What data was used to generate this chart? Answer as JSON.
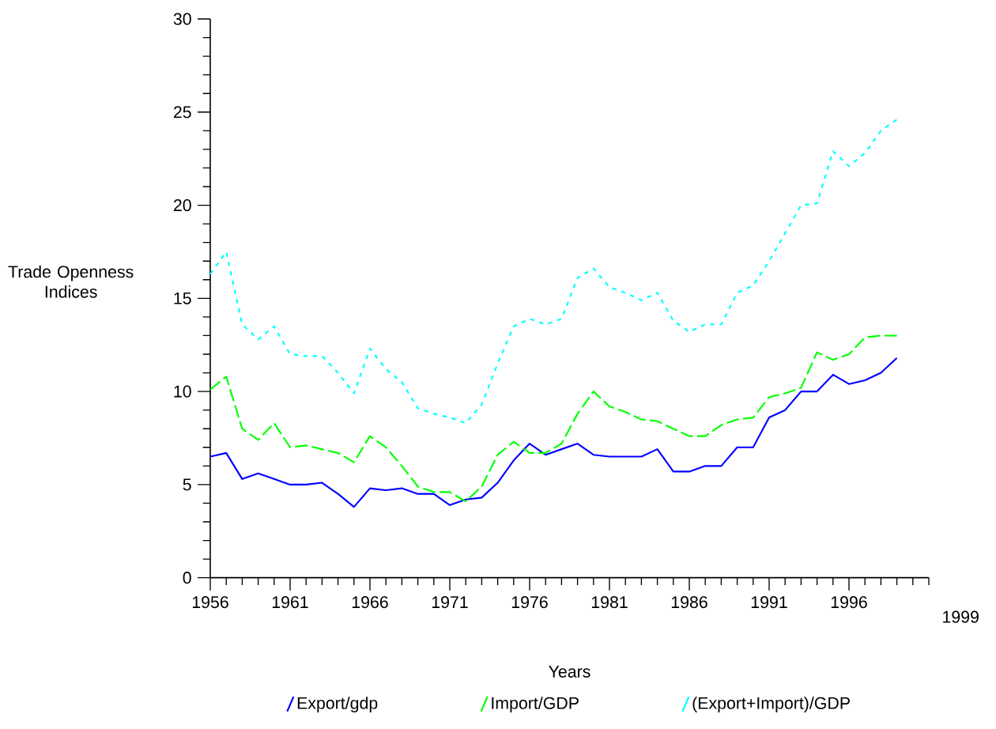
{
  "chart_data": {
    "type": "line",
    "xlabel": "Years",
    "ylabel": "Trade Openness Indices",
    "annotations": [
      "1999"
    ],
    "x": [
      1956,
      1957,
      1958,
      1959,
      1960,
      1961,
      1962,
      1963,
      1964,
      1965,
      1966,
      1967,
      1968,
      1969,
      1970,
      1971,
      1972,
      1973,
      1974,
      1975,
      1976,
      1977,
      1978,
      1979,
      1980,
      1981,
      1982,
      1983,
      1984,
      1985,
      1986,
      1987,
      1988,
      1989,
      1990,
      1991,
      1992,
      1993,
      1994,
      1995,
      1996,
      1997,
      1998,
      1999
    ],
    "series": [
      {
        "name": "Export/gdp",
        "color": "#0000ff",
        "line_style": "solid",
        "values": [
          6.5,
          6.7,
          5.3,
          5.6,
          5.3,
          5.0,
          5.0,
          5.1,
          4.5,
          3.8,
          4.8,
          4.7,
          4.8,
          4.5,
          4.5,
          3.9,
          4.2,
          4.3,
          5.1,
          6.3,
          7.2,
          6.6,
          6.9,
          7.2,
          6.6,
          6.5,
          6.5,
          6.5,
          6.9,
          5.7,
          5.7,
          6.0,
          6.0,
          7.0,
          7.0,
          8.6,
          9.0,
          10.0,
          10.0,
          10.9,
          10.4,
          10.6,
          11.0,
          11.8
        ]
      },
      {
        "name": "Import/GDP",
        "color": "#00ff00",
        "line_style": "dashed",
        "values": [
          10.1,
          10.8,
          8.0,
          7.4,
          8.3,
          7.0,
          7.1,
          6.9,
          6.7,
          6.2,
          7.6,
          7.0,
          6.0,
          4.9,
          4.6,
          4.6,
          4.1,
          4.9,
          6.6,
          7.3,
          6.7,
          6.7,
          7.2,
          8.8,
          10.0,
          9.2,
          8.9,
          8.5,
          8.4,
          8.0,
          7.6,
          7.6,
          8.2,
          8.5,
          8.6,
          9.7,
          9.9,
          10.2,
          12.1,
          11.7,
          12.0,
          12.9,
          13.0,
          13.0
        ]
      },
      {
        "name": "(Export+Import)/GDP",
        "color": "#00ffff",
        "line_style": "dotted",
        "values": [
          16.3,
          17.5,
          13.6,
          12.8,
          13.5,
          12.0,
          11.9,
          11.9,
          11.0,
          9.9,
          12.3,
          11.2,
          10.5,
          9.1,
          8.8,
          8.6,
          8.3,
          9.3,
          11.5,
          13.5,
          13.9,
          13.6,
          13.9,
          16.1,
          16.6,
          15.6,
          15.3,
          14.9,
          15.3,
          13.8,
          13.2,
          13.6,
          13.6,
          15.3,
          15.7,
          17.0,
          18.5,
          20.0,
          20.1,
          22.9,
          22.1,
          22.8,
          24.0,
          24.6
        ]
      }
    ],
    "xlim": [
      1956,
      2001
    ],
    "xticks": [
      1956,
      {
        "value": 1957,
        "label": null
      },
      {
        "value": 1958,
        "label": null
      },
      {
        "value": 1959,
        "label": null
      },
      {
        "value": 1960,
        "label": null
      },
      1961,
      {
        "value": 1962,
        "label": null
      },
      {
        "value": 1963,
        "label": null
      },
      {
        "value": 1964,
        "label": null
      },
      {
        "value": 1965,
        "label": null
      },
      1966,
      {
        "value": 1967,
        "label": null
      },
      {
        "value": 1968,
        "label": null
      },
      {
        "value": 1969,
        "label": null
      },
      {
        "value": 1970,
        "label": null
      },
      1971,
      {
        "value": 1972,
        "label": null
      },
      {
        "value": 1973,
        "label": null
      },
      {
        "value": 1974,
        "label": null
      },
      {
        "value": 1975,
        "label": null
      },
      1976,
      {
        "value": 1977,
        "label": null
      },
      {
        "value": 1978,
        "label": null
      },
      {
        "value": 1979,
        "label": null
      },
      {
        "value": 1980,
        "label": null
      },
      1981,
      {
        "value": 1982,
        "label": null
      },
      {
        "value": 1983,
        "label": null
      },
      {
        "value": 1984,
        "label": null
      },
      {
        "value": 1985,
        "label": null
      },
      1986,
      {
        "value": 1987,
        "label": null
      },
      {
        "value": 1988,
        "label": null
      },
      {
        "value": 1989,
        "label": null
      },
      {
        "value": 1990,
        "label": null
      },
      1991,
      {
        "value": 1992,
        "label": null
      },
      {
        "value": 1993,
        "label": null
      },
      {
        "value": 1994,
        "label": null
      },
      {
        "value": 1995,
        "label": null
      },
      1996,
      {
        "value": 1997,
        "label": null
      },
      {
        "value": 1998,
        "label": null
      },
      {
        "value": 1999,
        "label": null
      },
      {
        "value": 2000,
        "label": null
      },
      {
        "value": 2001,
        "label": null
      }
    ],
    "ylim": [
      0,
      30
    ],
    "yticks": [
      0,
      {
        "value": 1,
        "label": null
      },
      {
        "value": 2,
        "label": null
      },
      {
        "value": 3,
        "label": null
      },
      {
        "value": 4,
        "label": null
      },
      5,
      {
        "value": 6,
        "label": null
      },
      {
        "value": 7,
        "label": null
      },
      {
        "value": 8,
        "label": null
      },
      {
        "value": 9,
        "label": null
      },
      10,
      {
        "value": 11,
        "label": null
      },
      {
        "value": 12,
        "label": null
      },
      {
        "value": 13,
        "label": null
      },
      {
        "value": 14,
        "label": null
      },
      15,
      {
        "value": 16,
        "label": null
      },
      {
        "value": 17,
        "label": null
      },
      {
        "value": 18,
        "label": null
      },
      {
        "value": 19,
        "label": null
      },
      20,
      {
        "value": 21,
        "label": null
      },
      {
        "value": 22,
        "label": null
      },
      {
        "value": 23,
        "label": null
      },
      {
        "value": 24,
        "label": null
      },
      25,
      {
        "value": 26,
        "label": null
      },
      {
        "value": 27,
        "label": null
      },
      {
        "value": 28,
        "label": null
      },
      {
        "value": 29,
        "label": null
      },
      30
    ],
    "grid": false,
    "legend": "bottom",
    "marker": "none"
  }
}
